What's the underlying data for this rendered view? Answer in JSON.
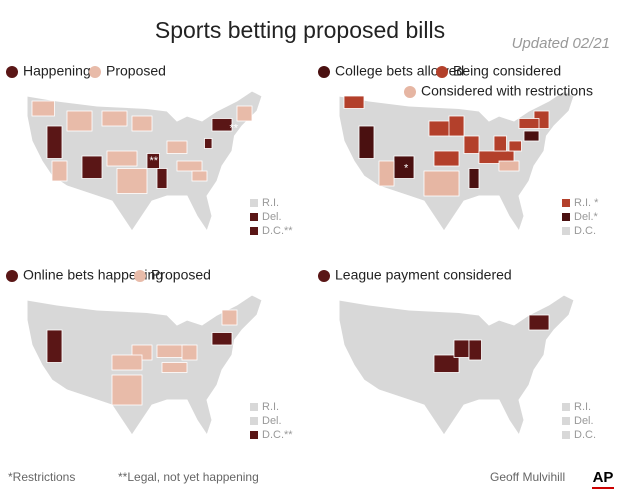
{
  "title": "Sports betting proposed bills",
  "updated": "Updated 02/21",
  "panels": [
    {
      "legend": [
        {
          "label": "Happening",
          "color": "#5a1616"
        },
        {
          "label": "Proposed",
          "color": "#e8bba9"
        }
      ],
      "small_states": [
        "R.I.",
        "Del.",
        "D.C.**"
      ],
      "annotations": [
        "**",
        "**"
      ]
    },
    {
      "legend": [
        {
          "label": "College bets allowed",
          "color": "#4a1010"
        },
        {
          "label": "Being considered",
          "color": "#b3402b"
        },
        {
          "label": "Considered with restrictions",
          "color": "#e6b6a3"
        }
      ],
      "small_states": [
        "R.I. *",
        "Del.*",
        "D.C."
      ],
      "annotations": [
        "*",
        "*"
      ]
    },
    {
      "legend": [
        {
          "label": "Online bets happening",
          "color": "#5a1616"
        },
        {
          "label": "Proposed",
          "color": "#e8bba9"
        }
      ],
      "small_states": [
        "R.I.",
        "Del.",
        "D.C.**"
      ],
      "annotations": []
    },
    {
      "legend": [
        {
          "label": "League payment considered",
          "color": "#5a1616"
        }
      ],
      "small_states": [
        "R.I.",
        "Del.",
        "D.C."
      ],
      "annotations": []
    }
  ],
  "footnotes": [
    "*Restrictions",
    "**Legal, not yet happening"
  ],
  "credit": "Geoff Mulvihill",
  "logo": "AP"
}
